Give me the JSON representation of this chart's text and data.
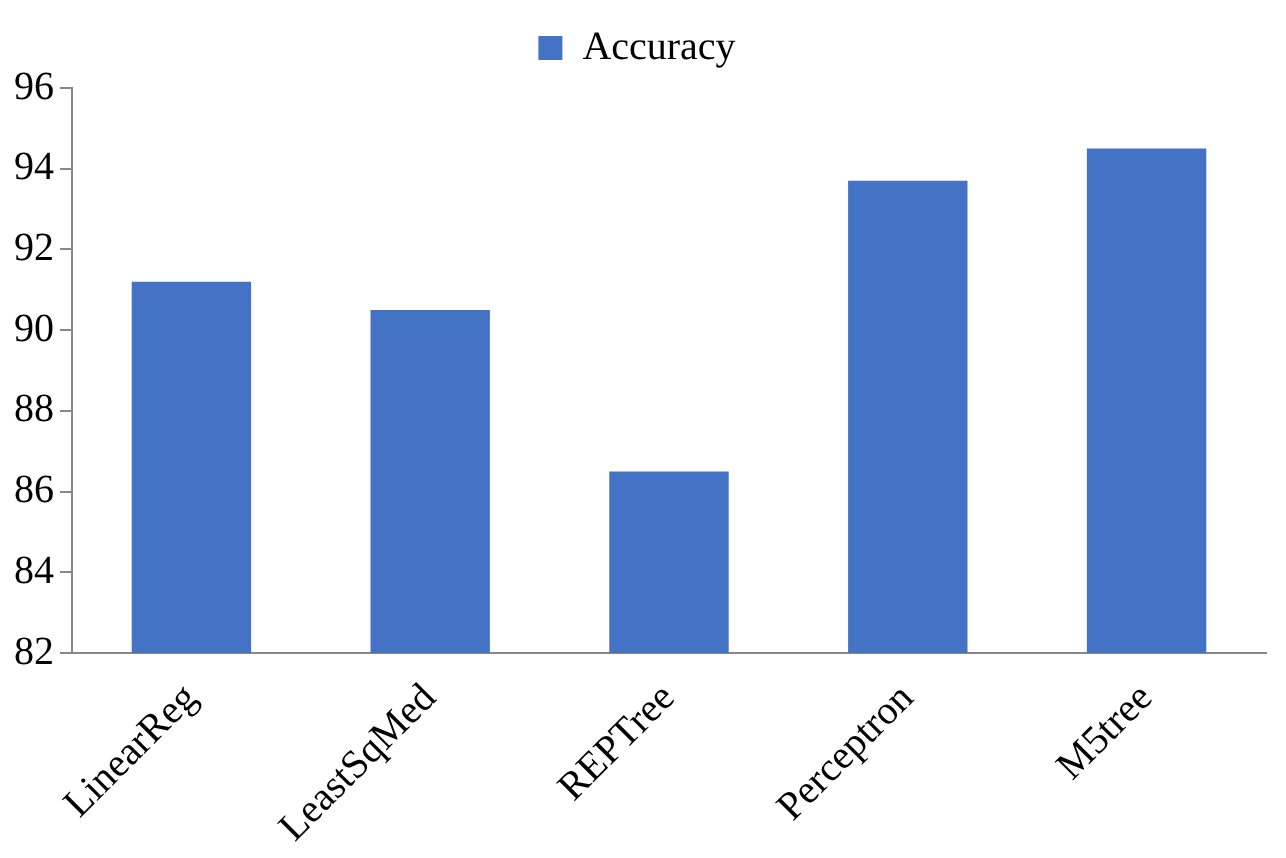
{
  "chart_data": {
    "type": "bar",
    "categories": [
      "LinearReg",
      "LeastSqMed",
      "REPTree",
      "Perceptron",
      "M5tree"
    ],
    "series": [
      {
        "name": "Accuracy",
        "color": "#4472c4",
        "values": [
          91.2,
          90.5,
          86.5,
          93.7,
          94.5
        ]
      }
    ],
    "ylim": [
      82,
      96
    ],
    "yticks": [
      82,
      84,
      86,
      88,
      90,
      92,
      94,
      96
    ],
    "grid": false,
    "legend": "top"
  }
}
